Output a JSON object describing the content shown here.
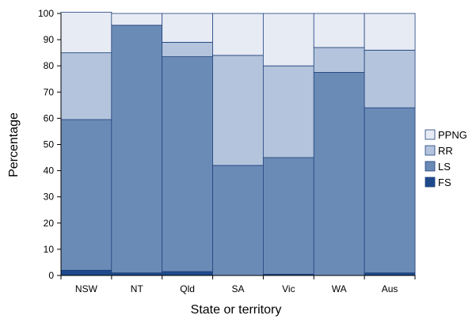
{
  "chart_data": {
    "type": "bar",
    "stacked": true,
    "categories": [
      "NSW",
      "NT",
      "Qld",
      "SA",
      "Vic",
      "WA",
      "Aus"
    ],
    "series": [
      {
        "name": "FS",
        "color": "#1e4a8c",
        "values": [
          2,
          1,
          1.5,
          0,
          0.5,
          0,
          1
        ]
      },
      {
        "name": "LS",
        "color": "#6b8bb7",
        "values": [
          57.5,
          94.5,
          82,
          42,
          44.5,
          77.5,
          63
        ]
      },
      {
        "name": "RR",
        "color": "#b3c4dc",
        "values": [
          25.5,
          0,
          5.5,
          42,
          35,
          9.5,
          22
        ]
      },
      {
        "name": "PPNG",
        "color": "#e6ebf4",
        "values": [
          15.5,
          4.5,
          11,
          16,
          20,
          13,
          14
        ]
      }
    ],
    "xlabel": "State or territory",
    "ylabel": "Percentage",
    "ylim": [
      0,
      100
    ],
    "yticks": [
      "0",
      "10",
      "20",
      "30",
      "40",
      "50",
      "60",
      "70",
      "80",
      "90",
      "100"
    ],
    "grid": false,
    "legend": {
      "placement": "right",
      "order": [
        "PPNG",
        "RR",
        "LS",
        "FS"
      ]
    }
  }
}
